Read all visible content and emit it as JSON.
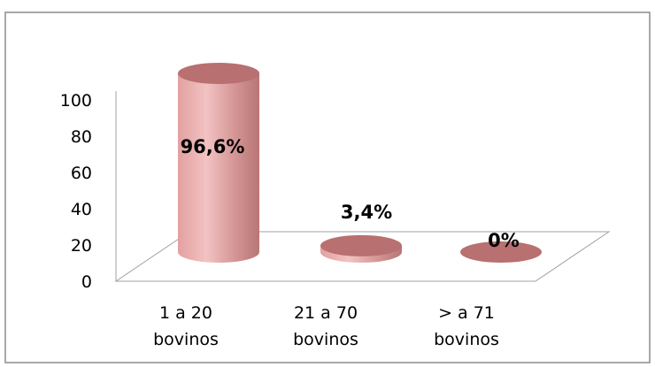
{
  "chart_data": {
    "type": "bar",
    "style": "3d-cylinder",
    "categories": [
      [
        "1 a 20",
        "bovinos"
      ],
      [
        "21 a 70",
        "bovinos"
      ],
      [
        ">  a 71",
        "bovinos"
      ]
    ],
    "values": [
      96.6,
      3.4,
      0
    ],
    "data_labels": [
      "96,6%",
      "3,4%",
      "0%"
    ],
    "yticks": [
      "0",
      "20",
      "40",
      "60",
      "80",
      "100"
    ],
    "ylim": [
      0,
      100
    ],
    "title": "",
    "xlabel": "",
    "ylabel": "",
    "grid": false,
    "legend": "none"
  },
  "colors": {
    "bar_light": "#E8A8A8",
    "bar_mid": "#D09090",
    "bar_dark": "#A86060",
    "bar_top": "#B87070",
    "axis": "#8C8C8C",
    "frame": "#8C8C8C",
    "text": "#000000"
  }
}
